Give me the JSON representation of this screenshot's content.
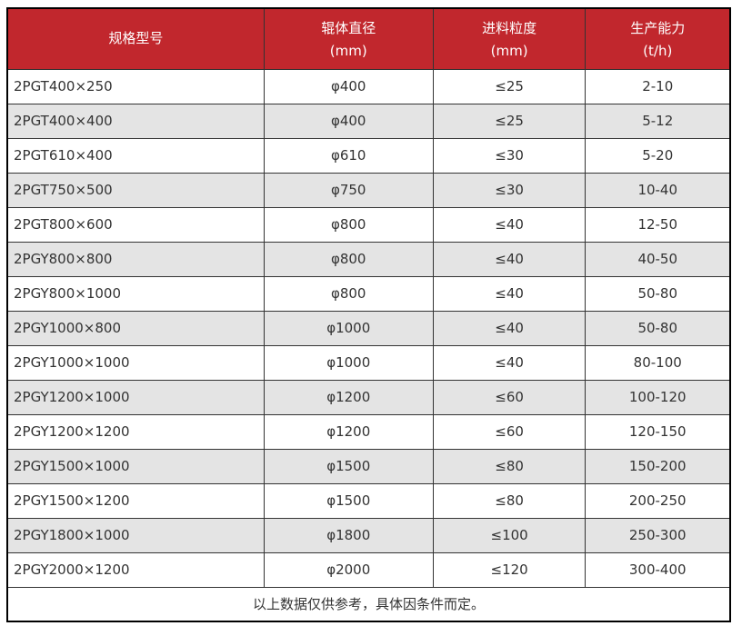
{
  "colors": {
    "header_bg": "#c1272d",
    "header_text": "#ffffff",
    "row_alt_bg": "#e4e4e4",
    "body_text": "#333333",
    "grid_border": "#333333",
    "outer_border": "#000000"
  },
  "table": {
    "columns": [
      {
        "label": "规格型号",
        "sub": ""
      },
      {
        "label": "辊体直径",
        "sub": "(mm)"
      },
      {
        "label": "进料粒度",
        "sub": "(mm)"
      },
      {
        "label": "生产能力",
        "sub": "(t/h)"
      }
    ],
    "rows": [
      [
        "2PGT400×250",
        "φ400",
        "≤25",
        "2-10"
      ],
      [
        "2PGT400×400",
        "φ400",
        "≤25",
        "5-12"
      ],
      [
        "2PGT610×400",
        "φ610",
        "≤30",
        "5-20"
      ],
      [
        "2PGT750×500",
        "φ750",
        "≤30",
        "10-40"
      ],
      [
        "2PGT800×600",
        "φ800",
        "≤40",
        "12-50"
      ],
      [
        "2PGY800×800",
        "φ800",
        "≤40",
        "40-50"
      ],
      [
        "2PGY800×1000",
        "φ800",
        "≤40",
        "50-80"
      ],
      [
        "2PGY1000×800",
        "φ1000",
        "≤40",
        "50-80"
      ],
      [
        "2PGY1000×1000",
        "φ1000",
        "≤40",
        "80-100"
      ],
      [
        "2PGY1200×1000",
        "φ1200",
        "≤60",
        "100-120"
      ],
      [
        "2PGY1200×1200",
        "φ1200",
        "≤60",
        "120-150"
      ],
      [
        "2PGY1500×1000",
        "φ1500",
        "≤80",
        "150-200"
      ],
      [
        "2PGY1500×1200",
        "φ1500",
        "≤80",
        "200-250"
      ],
      [
        "2PGY1800×1000",
        "φ1800",
        "≤100",
        "250-300"
      ],
      [
        "2PGY2000×1200",
        "φ2000",
        "≤120",
        "300-400"
      ]
    ],
    "footer": "以上数据仅供参考，具体因条件而定。"
  }
}
